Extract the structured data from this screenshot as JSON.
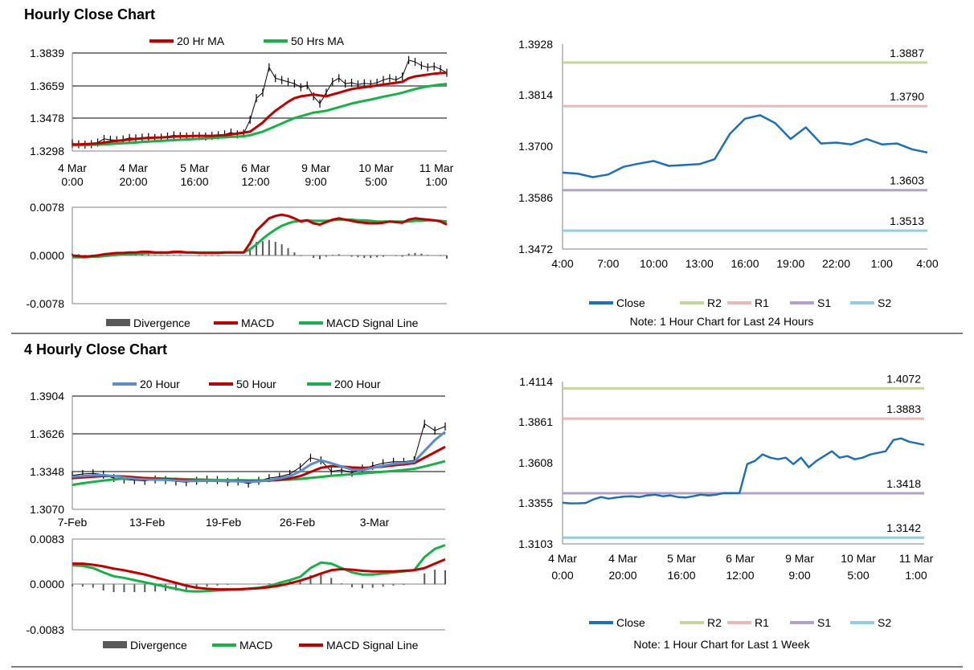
{
  "colors": {
    "close": "#1f6fb4",
    "r2": "#c3d69b",
    "r1": "#e6b9b8",
    "s1": "#b3a2c7",
    "s2": "#93cddd",
    "red": "#c00000",
    "green": "#17b14a",
    "blue": "#5b8ccc",
    "price": "#000000",
    "grid": "#808080",
    "divergence": "#595959"
  },
  "sections": {
    "hourly": {
      "title": "Hourly Close Chart"
    },
    "four_hourly": {
      "title": "4 Hourly Close Chart"
    }
  },
  "chart_data": [
    {
      "id": "hourly_price",
      "type": "line",
      "legend": [
        "20 Hr MA",
        "50 Hrs MA"
      ],
      "y_ticks": [
        "1.3839",
        "1.3659",
        "1.3478",
        "1.3298"
      ],
      "ylim": [
        1.3298,
        1.3839
      ],
      "x_ticks": [
        [
          "4 Mar",
          "0:00"
        ],
        [
          "4 Mar",
          "20:00"
        ],
        [
          "5 Mar",
          "16:00"
        ],
        [
          "6 Mar",
          "12:00"
        ],
        [
          "9 Mar",
          "9:00"
        ],
        [
          "10 Mar",
          "5:00"
        ],
        [
          "11 Mar",
          "1:00"
        ]
      ],
      "series": [
        {
          "name": "Close",
          "values": [
            1.334,
            1.3335,
            1.3333,
            1.3336,
            1.3345,
            1.3365,
            1.336,
            1.3358,
            1.3362,
            1.337,
            1.3368,
            1.3372,
            1.3375,
            1.337,
            1.3372,
            1.3378,
            1.3385,
            1.338,
            1.3378,
            1.3382,
            1.338,
            1.3378,
            1.3382,
            1.3385,
            1.339,
            1.34,
            1.339,
            1.3395,
            1.347,
            1.359,
            1.362,
            1.376,
            1.37,
            1.369,
            1.368,
            1.367,
            1.365,
            1.366,
            1.36,
            1.356,
            1.362,
            1.368,
            1.37,
            1.367,
            1.3675,
            1.3665,
            1.3672,
            1.3668,
            1.3675,
            1.369,
            1.37,
            1.369,
            1.371,
            1.38,
            1.379,
            1.377,
            1.376,
            1.3765,
            1.375,
            1.373
          ]
        },
        {
          "name": "20 Hr MA",
          "values": [
            1.3335,
            1.3335,
            1.3336,
            1.3338,
            1.334,
            1.3345,
            1.335,
            1.3354,
            1.3357,
            1.3362,
            1.3365,
            1.3368,
            1.337,
            1.3372,
            1.3373,
            1.3375,
            1.3378,
            1.338,
            1.338,
            1.3381,
            1.3382,
            1.3382,
            1.3382,
            1.3384,
            1.3386,
            1.339,
            1.3395,
            1.34,
            1.3405,
            1.343,
            1.3455,
            1.349,
            1.352,
            1.3545,
            1.357,
            1.359,
            1.36,
            1.3605,
            1.361,
            1.3605,
            1.36,
            1.361,
            1.362,
            1.363,
            1.364,
            1.3645,
            1.365,
            1.3655,
            1.366,
            1.3665,
            1.367,
            1.3675,
            1.368,
            1.37,
            1.371,
            1.3715,
            1.372,
            1.3725,
            1.3728,
            1.373
          ]
        },
        {
          "name": "50 Hrs MA",
          "values": [
            1.333,
            1.333,
            1.3331,
            1.3332,
            1.3333,
            1.3335,
            1.3337,
            1.3339,
            1.3341,
            1.3343,
            1.3345,
            1.3348,
            1.335,
            1.3352,
            1.3354,
            1.3356,
            1.3358,
            1.336,
            1.3362,
            1.3364,
            1.3366,
            1.3368,
            1.337,
            1.3372,
            1.3374,
            1.3376,
            1.3378,
            1.338,
            1.3385,
            1.3395,
            1.3405,
            1.342,
            1.3435,
            1.345,
            1.3465,
            1.348,
            1.349,
            1.35,
            1.351,
            1.3515,
            1.352,
            1.353,
            1.354,
            1.355,
            1.356,
            1.3568,
            1.3575,
            1.3582,
            1.359,
            1.3598,
            1.3605,
            1.3612,
            1.362,
            1.363,
            1.364,
            1.3648,
            1.3655,
            1.366,
            1.3665,
            1.3668
          ]
        }
      ]
    },
    {
      "id": "hourly_macd",
      "type": "line",
      "legend": [
        "Divergence",
        "MACD",
        "MACD Signal Line"
      ],
      "y_ticks": [
        "0.0078",
        "0.0000",
        "-0.0078"
      ],
      "ylim": [
        -0.0078,
        0.0078
      ],
      "series": [
        {
          "name": "MACD",
          "values": [
            0.0,
            -0.0001,
            -0.0002,
            -0.0001,
            0.0,
            0.0002,
            0.0003,
            0.0004,
            0.0004,
            0.0005,
            0.0005,
            0.0006,
            0.0006,
            0.0005,
            0.0005,
            0.0005,
            0.0006,
            0.0006,
            0.0005,
            0.0005,
            0.0004,
            0.0004,
            0.0004,
            0.0004,
            0.0005,
            0.0005,
            0.0005,
            0.0005,
            0.002,
            0.004,
            0.005,
            0.006,
            0.0064,
            0.0066,
            0.0064,
            0.006,
            0.0055,
            0.0057,
            0.0052,
            0.005,
            0.0054,
            0.0058,
            0.006,
            0.0058,
            0.0056,
            0.0054,
            0.0053,
            0.0052,
            0.0052,
            0.0053,
            0.0055,
            0.0054,
            0.0053,
            0.0058,
            0.006,
            0.0059,
            0.0058,
            0.0057,
            0.0055,
            0.005
          ]
        },
        {
          "name": "MACD Signal Line",
          "values": [
            -0.0003,
            -0.0003,
            -0.0003,
            -0.0002,
            -0.0002,
            -0.0001,
            0.0,
            0.0001,
            0.0002,
            0.0002,
            0.0003,
            0.0003,
            0.0004,
            0.0004,
            0.0004,
            0.0004,
            0.0005,
            0.0005,
            0.0005,
            0.0005,
            0.0005,
            0.0005,
            0.0005,
            0.0005,
            0.0005,
            0.0005,
            0.0005,
            0.0005,
            0.001,
            0.0018,
            0.0027,
            0.0035,
            0.0042,
            0.0048,
            0.0052,
            0.0055,
            0.0056,
            0.0057,
            0.0056,
            0.0056,
            0.0056,
            0.0057,
            0.0058,
            0.0058,
            0.0058,
            0.0057,
            0.0057,
            0.0056,
            0.0055,
            0.0055,
            0.0055,
            0.0055,
            0.0055,
            0.0055,
            0.0056,
            0.0056,
            0.0057,
            0.0057,
            0.0056,
            0.0055
          ]
        }
      ]
    },
    {
      "id": "hourly_close_24h",
      "type": "line",
      "legend": [
        "Close",
        "R2",
        "R1",
        "S1",
        "S2"
      ],
      "note": "Note: 1 Hour Chart for Last 24 Hours",
      "y_ticks": [
        "1.3928",
        "1.3814",
        "1.3700",
        "1.3586",
        "1.3472"
      ],
      "ylim": [
        1.3472,
        1.3928
      ],
      "x_ticks": [
        "4:00",
        "7:00",
        "10:00",
        "13:00",
        "16:00",
        "19:00",
        "22:00",
        "1:00",
        "4:00"
      ],
      "levels": [
        {
          "name": "R2",
          "value": 1.3887,
          "label": "1.3887"
        },
        {
          "name": "R1",
          "value": 1.379,
          "label": "1.3790"
        },
        {
          "name": "S1",
          "value": 1.3603,
          "label": "1.3603"
        },
        {
          "name": "S2",
          "value": 1.3513,
          "label": "1.3513"
        }
      ],
      "series": [
        {
          "name": "Close",
          "values": [
            1.3642,
            1.364,
            1.3632,
            1.3638,
            1.3655,
            1.3662,
            1.3668,
            1.3657,
            1.3659,
            1.3661,
            1.3672,
            1.3728,
            1.3762,
            1.377,
            1.3752,
            1.3717,
            1.3743,
            1.3707,
            1.3709,
            1.3705,
            1.3717,
            1.3705,
            1.3707,
            1.3694,
            1.3687
          ]
        }
      ]
    },
    {
      "id": "four_hourly_price",
      "type": "line",
      "legend": [
        "20 Hour",
        "50 Hour",
        "200 Hour"
      ],
      "y_ticks": [
        "1.3904",
        "1.3626",
        "1.3348",
        "1.3070"
      ],
      "ylim": [
        1.307,
        1.3904
      ],
      "x_ticks": [
        "7-Feb",
        "13-Feb",
        "19-Feb",
        "26-Feb",
        "3-Mar"
      ],
      "series": [
        {
          "name": "Close",
          "values": [
            1.332,
            1.333,
            1.3335,
            1.3325,
            1.33,
            1.329,
            1.3285,
            1.328,
            1.329,
            1.3285,
            1.3275,
            1.327,
            1.328,
            1.329,
            1.3285,
            1.327,
            1.3275,
            1.326,
            1.328,
            1.33,
            1.331,
            1.333,
            1.338,
            1.345,
            1.343,
            1.335,
            1.336,
            1.334,
            1.337,
            1.339,
            1.341,
            1.342,
            1.342,
            1.343,
            1.37,
            1.365,
            1.368
          ]
        },
        {
          "name": "20 Hour",
          "values": [
            1.331,
            1.3315,
            1.332,
            1.3322,
            1.3315,
            1.3305,
            1.3295,
            1.329,
            1.3288,
            1.3287,
            1.3282,
            1.3278,
            1.3278,
            1.328,
            1.3281,
            1.3278,
            1.3276,
            1.3272,
            1.3275,
            1.3285,
            1.3298,
            1.3315,
            1.335,
            1.34,
            1.343,
            1.341,
            1.3385,
            1.3362,
            1.336,
            1.3375,
            1.3392,
            1.3405,
            1.3412,
            1.342,
            1.35,
            1.358,
            1.364
          ]
        },
        {
          "name": "50 Hour",
          "values": [
            1.33,
            1.3305,
            1.331,
            1.3315,
            1.3315,
            1.3312,
            1.3306,
            1.33,
            1.3296,
            1.3293,
            1.3289,
            1.3285,
            1.3282,
            1.3281,
            1.328,
            1.3279,
            1.3278,
            1.3277,
            1.3278,
            1.3282,
            1.3288,
            1.3297,
            1.3315,
            1.3345,
            1.3375,
            1.3388,
            1.3385,
            1.3378,
            1.3375,
            1.3378,
            1.3385,
            1.3394,
            1.3402,
            1.341,
            1.345,
            1.349,
            1.353
          ]
        },
        {
          "name": "200 Hour",
          "values": [
            1.325,
            1.3262,
            1.3272,
            1.3282,
            1.329,
            1.3296,
            1.33,
            1.33,
            1.3298,
            1.3296,
            1.3294,
            1.3292,
            1.329,
            1.3288,
            1.3286,
            1.3285,
            1.3284,
            1.3283,
            1.3283,
            1.3284,
            1.3286,
            1.3289,
            1.3294,
            1.3301,
            1.3309,
            1.3317,
            1.3323,
            1.3329,
            1.3335,
            1.3341,
            1.3347,
            1.3353,
            1.336,
            1.3368,
            1.3385,
            1.3405,
            1.3425
          ]
        }
      ]
    },
    {
      "id": "four_hourly_macd",
      "type": "line",
      "legend": [
        "Divergence",
        "MACD",
        "MACD Signal Line"
      ],
      "y_ticks": [
        "0.0083",
        "0.0000",
        "-0.0083"
      ],
      "ylim": [
        -0.0083,
        0.0083
      ],
      "series": [
        {
          "name": "MACD",
          "values": [
            0.0035,
            0.0034,
            0.003,
            0.0022,
            0.0015,
            0.0012,
            0.0008,
            0.0004,
            0.0,
            -0.0004,
            -0.0008,
            -0.0012,
            -0.0013,
            -0.0012,
            -0.0011,
            -0.001,
            -0.0009,
            -0.0008,
            -0.0006,
            -0.0003,
            0.0003,
            0.0008,
            0.0014,
            0.003,
            0.004,
            0.0038,
            0.003,
            0.0022,
            0.0018,
            0.0018,
            0.002,
            0.0022,
            0.0024,
            0.0026,
            0.005,
            0.0065,
            0.0072
          ]
        },
        {
          "name": "MACD Signal Line",
          "values": [
            0.0038,
            0.0038,
            0.0036,
            0.0033,
            0.0029,
            0.0026,
            0.0022,
            0.0018,
            0.0013,
            0.0008,
            0.0003,
            -0.0002,
            -0.0006,
            -0.0008,
            -0.0009,
            -0.0009,
            -0.0009,
            -0.0008,
            -0.0007,
            -0.0005,
            -0.0002,
            0.0002,
            0.0007,
            0.0013,
            0.002,
            0.0026,
            0.0028,
            0.0027,
            0.0025,
            0.0024,
            0.0024,
            0.0024,
            0.0025,
            0.0026,
            0.003,
            0.0038,
            0.0046
          ]
        }
      ]
    },
    {
      "id": "hourly_close_1w",
      "type": "line",
      "legend": [
        "Close",
        "R2",
        "R1",
        "S1",
        "S2"
      ],
      "note": "Note: 1 Hour Chart for  Last 1 Week",
      "y_ticks": [
        "1.4114",
        "1.3861",
        "1.3608",
        "1.3355",
        "1.3103"
      ],
      "ylim": [
        1.3103,
        1.4114
      ],
      "x_ticks": [
        [
          "4 Mar",
          "0:00"
        ],
        [
          "4 Mar",
          "20:00"
        ],
        [
          "5 Mar",
          "16:00"
        ],
        [
          "6 Mar",
          "12:00"
        ],
        [
          "9 Mar",
          "9:00"
        ],
        [
          "10 Mar",
          "5:00"
        ],
        [
          "11 Mar",
          "1:00"
        ]
      ],
      "levels": [
        {
          "name": "R2",
          "value": 1.4072,
          "label": "1.4072"
        },
        {
          "name": "R1",
          "value": 1.3883,
          "label": "1.3883"
        },
        {
          "name": "S1",
          "value": 1.3418,
          "label": "1.3418"
        },
        {
          "name": "S2",
          "value": 1.3142,
          "label": "1.3142"
        }
      ],
      "series": [
        {
          "name": "Close",
          "values": [
            1.336,
            1.3355,
            1.3356,
            1.3358,
            1.338,
            1.3395,
            1.3385,
            1.3392,
            1.3398,
            1.34,
            1.3395,
            1.3405,
            1.341,
            1.34,
            1.3405,
            1.3395,
            1.3392,
            1.34,
            1.341,
            1.3405,
            1.341,
            1.342,
            1.342,
            1.342,
            1.36,
            1.362,
            1.366,
            1.364,
            1.363,
            1.364,
            1.36,
            1.364,
            1.358,
            1.362,
            1.365,
            1.368,
            1.364,
            1.365,
            1.363,
            1.364,
            1.366,
            1.367,
            1.368,
            1.375,
            1.376,
            1.374,
            1.373,
            1.372
          ]
        }
      ]
    }
  ]
}
